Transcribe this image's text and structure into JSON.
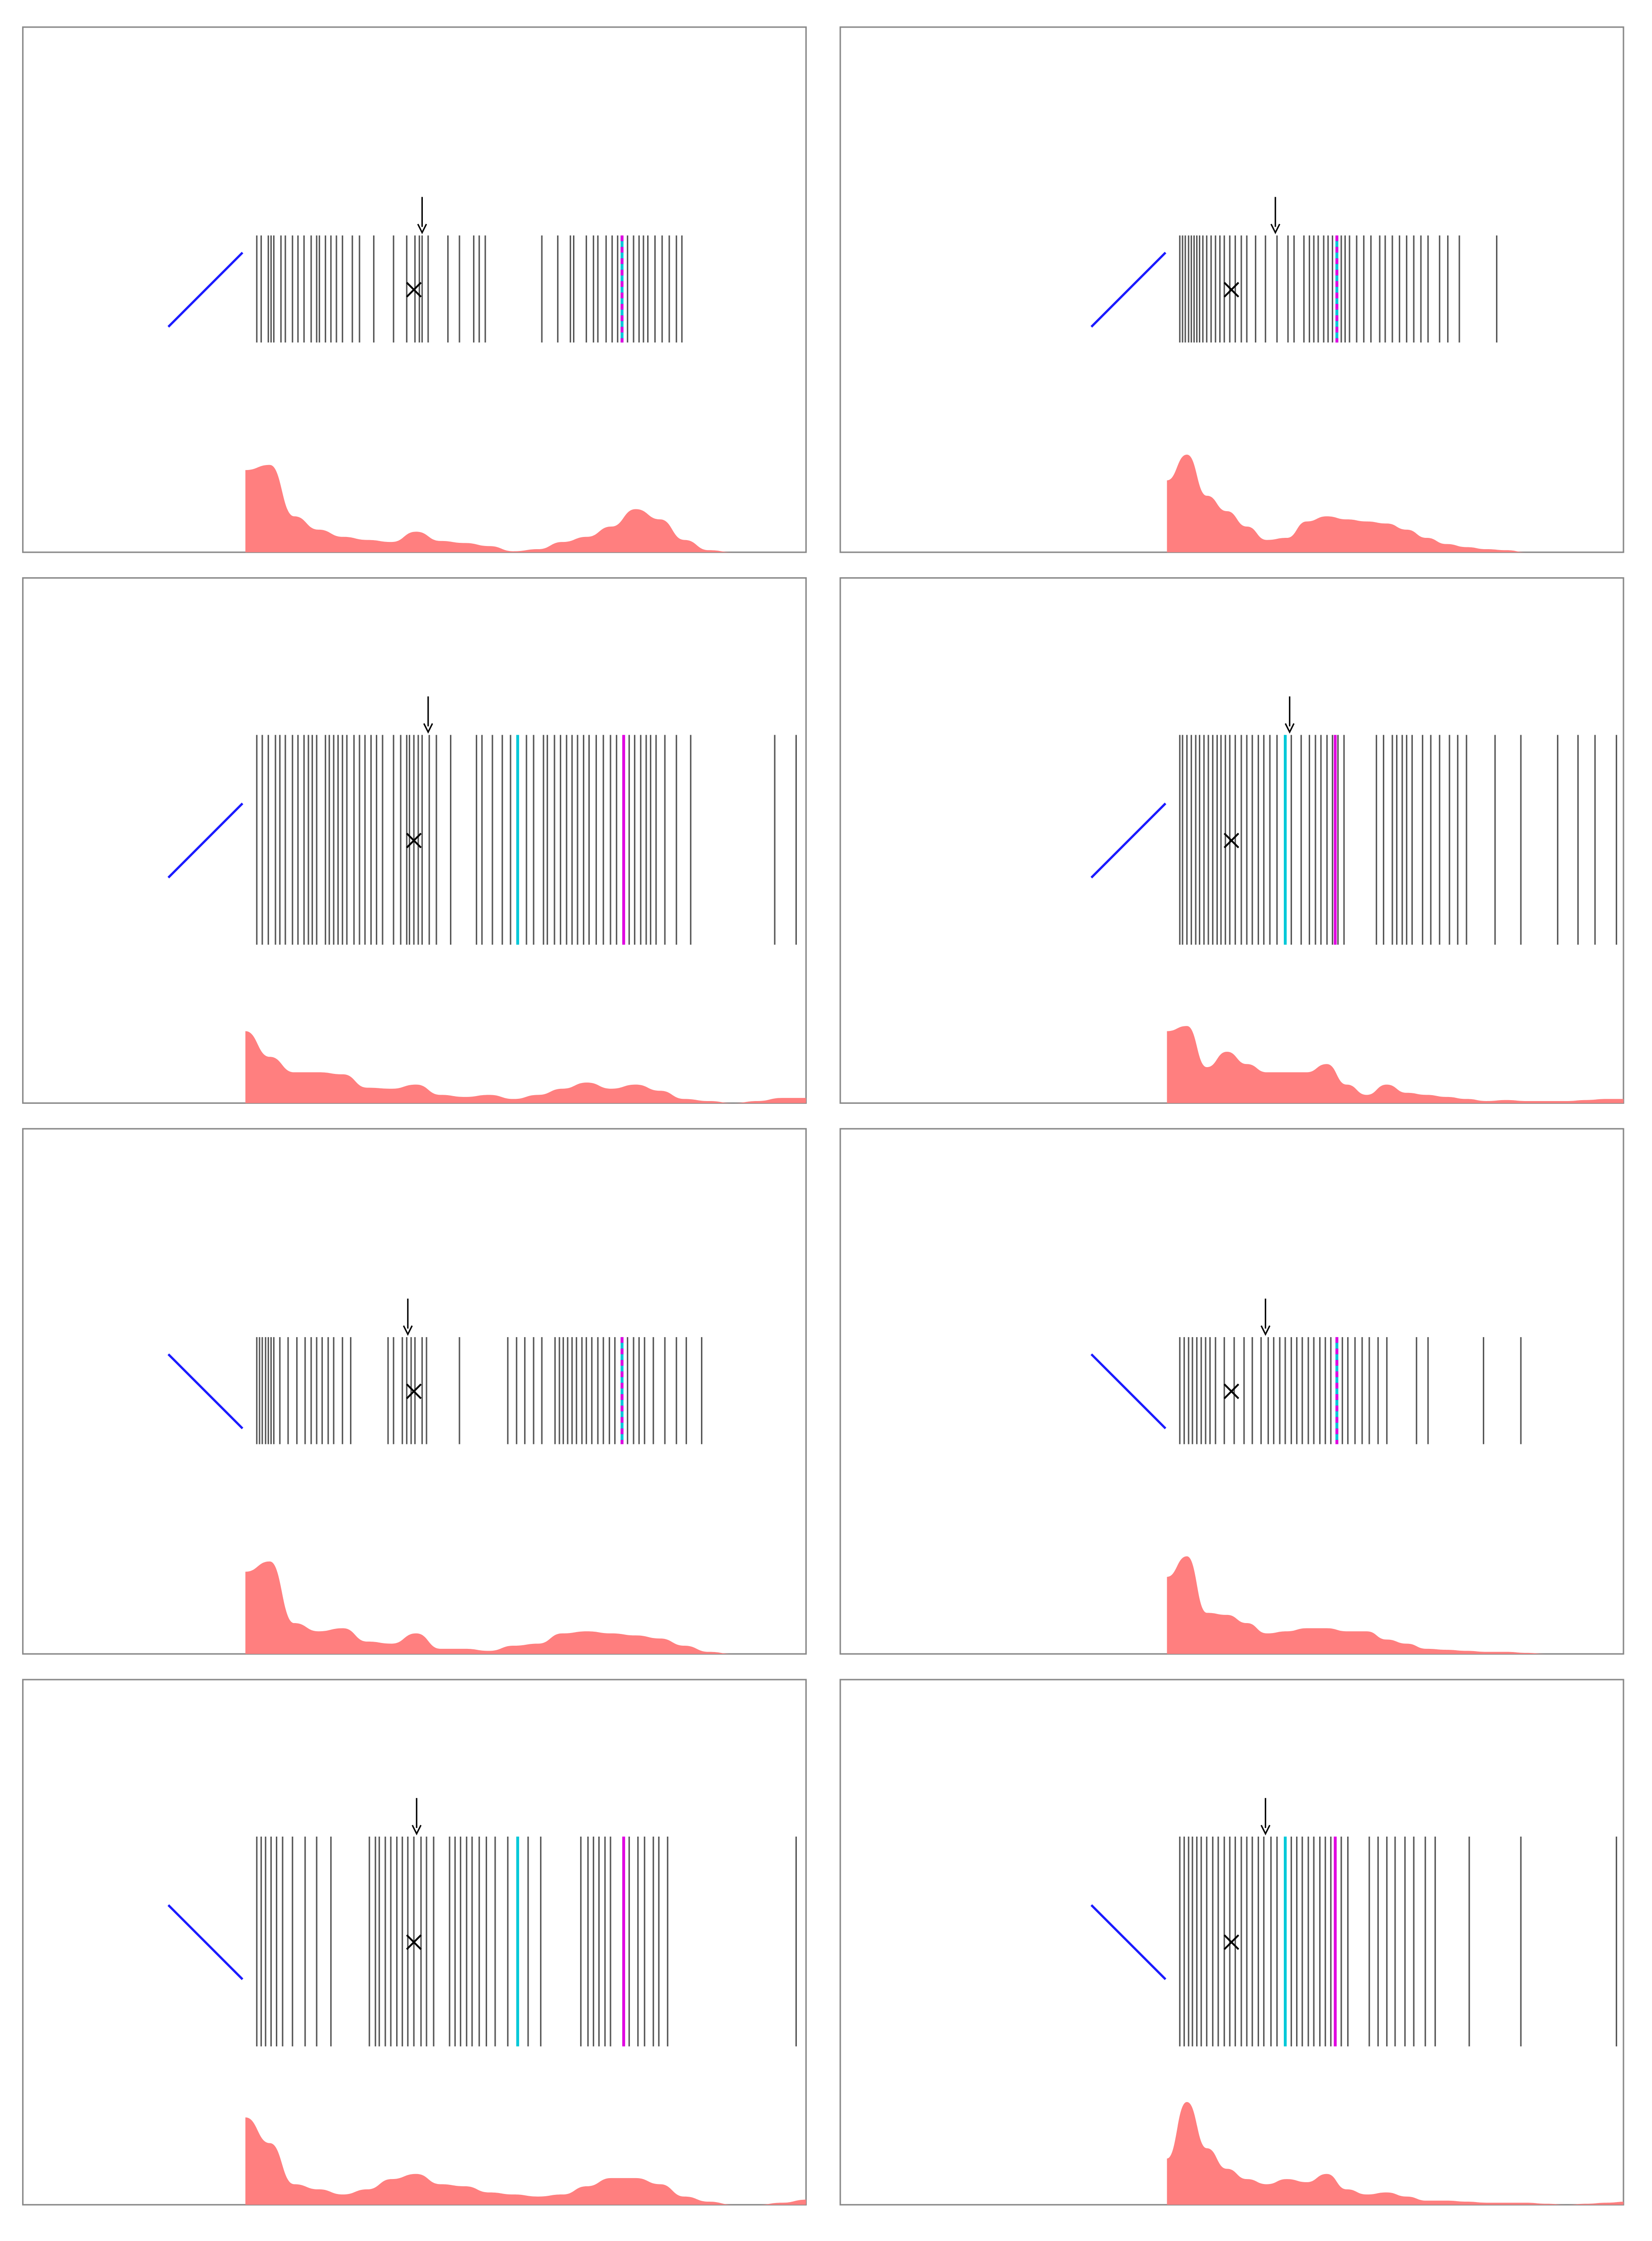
{
  "chart_data": [
    {
      "type": "barcode",
      "color": "#555555",
      "density_color": "#ff7f7f",
      "trend_color": "#1a1aff",
      "xlim": [
        0,
        100
      ],
      "ylim": [
        0,
        100
      ],
      "x": [
        0,
        0.8,
        2.1,
        2.6,
        3.1,
        4.4,
        5.2,
        6.5,
        7.5,
        8.6,
        9.9,
        10.9,
        11.4,
        12.5,
        13.5,
        14.5,
        15.6,
        17.4,
        18.7,
        21.3,
        24.9,
        27.3,
        28.8,
        29.6,
        30.1,
        31.2,
        34.8,
        36.9,
        39.5,
        40.5,
        41.6,
        51.9,
        54.8,
        57.1,
        57.7,
        60,
        61.3,
        62.1,
        63.6,
        64.7,
        65.7,
        67.5,
        68.6,
        69.6,
        70.4,
        71.2,
        72.5,
        73.8,
        75.1,
        76.4,
        77.4
      ],
      "highlights": [
        {
          "color": "#00c8d8",
          "x": 66.5
        },
        {
          "color": "#e000e0",
          "x": 66.5
        }
      ],
      "pointer_x": 30.1,
      "marker_x": 28.6,
      "density": [
        80,
        85,
        35,
        22,
        15,
        12,
        10,
        20,
        11,
        9,
        6,
        1,
        3,
        10,
        15,
        25,
        42,
        32,
        12,
        2,
        0,
        0,
        0,
        0
      ]
    },
    {
      "type": "barcode",
      "color": "#555555",
      "density_color": "#ff7f7f",
      "trend_color": "#1a1aff",
      "xlim": [
        0,
        100
      ],
      "ylim": [
        0,
        100
      ],
      "x": [
        0,
        0.5,
        1,
        1.6,
        2.1,
        2.6,
        3.1,
        3.6,
        4.2,
        4.9,
        5.7,
        6.5,
        7.3,
        8.1,
        9.1,
        10.1,
        11.2,
        12.2,
        13.8,
        15.6,
        17.7,
        19.7,
        20.8,
        22.6,
        23.6,
        24.4,
        25.2,
        26.2,
        27,
        27.8,
        29.4,
        30.1,
        30.9,
        32.2,
        33.5,
        34.8,
        36.4,
        37.4,
        38.7,
        40,
        41.3,
        42.6,
        43.9,
        45.2,
        47.3,
        48.8,
        50.9,
        57.7
      ],
      "highlights": [
        {
          "color": "#00c8d8",
          "x": 28.6
        },
        {
          "color": "#e000e0",
          "x": 28.6
        }
      ],
      "pointer_x": 17.4,
      "marker_x": 9.4,
      "density": [
        70,
        95,
        55,
        40,
        25,
        12,
        14,
        30,
        35,
        32,
        30,
        28,
        22,
        14,
        8,
        5,
        3,
        2,
        0,
        0,
        0,
        0,
        0,
        0
      ]
    },
    {
      "type": "barcode",
      "color": "#555555",
      "density_color": "#ff7f7f",
      "trend_color": "#1a1aff",
      "xlim": [
        0,
        100
      ],
      "ylim": [
        0,
        100
      ],
      "x": [
        0,
        1,
        2.1,
        3.4,
        4.2,
        5.2,
        6.5,
        7.5,
        8.6,
        9.4,
        10.1,
        10.9,
        12.5,
        13.2,
        14,
        14.8,
        15.6,
        16.4,
        17.7,
        18.7,
        19.7,
        20.8,
        21.8,
        22.9,
        24.9,
        26.2,
        27.3,
        27.8,
        28.6,
        29.4,
        30.1,
        31.4,
        32.7,
        35.3,
        40,
        41,
        42.9,
        44.7,
        46.2,
        49.1,
        50.4,
        52.2,
        52.9,
        54.2,
        55.3,
        56.4,
        57.4,
        58.4,
        59.5,
        60.5,
        61.8,
        63.1,
        64.4,
        65.5,
        67.8,
        68.8,
        69.9,
        70.9,
        71.7,
        72.7,
        74.3,
        76.4,
        79,
        94.3,
        98.2
      ],
      "highlights": [
        {
          "color": "#00c8d8",
          "x": 47.5
        },
        {
          "color": "#e000e0",
          "x": 66.8
        }
      ],
      "pointer_x": 31.2,
      "marker_x": 28.6,
      "density": [
        70,
        45,
        30,
        30,
        28,
        15,
        14,
        18,
        8,
        6,
        8,
        4,
        8,
        14,
        20,
        14,
        18,
        12,
        4,
        2,
        0,
        2,
        5,
        5
      ]
    },
    {
      "type": "barcode",
      "color": "#555555",
      "density_color": "#ff7f7f",
      "trend_color": "#1a1aff",
      "xlim": [
        0,
        100
      ],
      "ylim": [
        0,
        100
      ],
      "x": [
        0,
        0.5,
        1.3,
        2.1,
        2.9,
        3.6,
        4.4,
        5.2,
        6,
        6.8,
        7.5,
        8.3,
        9.1,
        10.1,
        11.2,
        12.2,
        13.2,
        14.3,
        15.3,
        16.4,
        17.7,
        20.3,
        22.1,
        23.6,
        24.7,
        25.7,
        26.8,
        27.8,
        28.8,
        29.9,
        35.8,
        37.1,
        38.7,
        39.5,
        40.5,
        41.3,
        42.3,
        44.2,
        45.7,
        47.3,
        49.1,
        50.6,
        52.2,
        57.4,
        62.1,
        68.8,
        72.5,
        75.6,
        79.5
      ],
      "highlights": [
        {
          "color": "#00c8d8",
          "x": 19.2
        },
        {
          "color": "#e000e0",
          "x": 28.3
        }
      ],
      "pointer_x": 20,
      "marker_x": 9.4,
      "density": [
        70,
        75,
        35,
        50,
        38,
        30,
        30,
        30,
        38,
        18,
        8,
        18,
        10,
        8,
        6,
        4,
        2,
        3,
        2,
        2,
        2,
        3,
        4,
        4
      ]
    },
    {
      "type": "barcode",
      "color": "#555555",
      "density_color": "#ff7f7f",
      "trend_color": "#1a1aff",
      "xlim": [
        0,
        100
      ],
      "ylim": [
        0,
        100
      ],
      "x": [
        0,
        0.5,
        1,
        1.6,
        2.1,
        2.6,
        3.1,
        4.2,
        5.7,
        7.3,
        8.8,
        9.9,
        10.9,
        11.9,
        13,
        14,
        15.6,
        17.1,
        23.9,
        24.9,
        26.5,
        27.3,
        28.1,
        28.8,
        30.1,
        30.9,
        36.9,
        45.7,
        47.3,
        48.8,
        50.4,
        51.9,
        54.3,
        55.1,
        55.8,
        56.6,
        57.4,
        58.2,
        59.2,
        60,
        61,
        62.1,
        63.1,
        64.2,
        65.2,
        67.5,
        68.6,
        69.6,
        70.6,
        72.2,
        74.3,
        76.4,
        78.2,
        81
      ],
      "highlights": [
        {
          "color": "#00c8d8",
          "x": 66.5
        },
        {
          "color": "#e000e0",
          "x": 66.5
        }
      ],
      "pointer_x": 27.5,
      "marker_x": 28.6,
      "density": [
        80,
        90,
        30,
        22,
        25,
        12,
        10,
        20,
        5,
        5,
        3,
        8,
        10,
        20,
        22,
        20,
        18,
        15,
        8,
        2,
        0,
        0,
        0,
        0
      ]
    },
    {
      "type": "barcode",
      "color": "#555555",
      "density_color": "#ff7f7f",
      "trend_color": "#1a1aff",
      "xlim": [
        0,
        100
      ],
      "ylim": [
        0,
        100
      ],
      "x": [
        0,
        0.8,
        1.6,
        2.3,
        3.1,
        3.9,
        4.7,
        5.5,
        6.5,
        8.1,
        9.9,
        11.7,
        13.2,
        14.8,
        16.1,
        17.1,
        18.2,
        19.2,
        20.3,
        21.3,
        22.3,
        23.4,
        24.4,
        25.5,
        26.5,
        27.5,
        29.6,
        30.6,
        31.9,
        33.2,
        34.5,
        36.1,
        37.7,
        43.1,
        45.2,
        55.3,
        62.1
      ],
      "highlights": [
        {
          "color": "#00c8d8",
          "x": 28.6
        },
        {
          "color": "#e000e0",
          "x": 28.6
        }
      ],
      "pointer_x": 15.6,
      "marker_x": 9.4,
      "density": [
        75,
        95,
        40,
        38,
        30,
        20,
        22,
        25,
        25,
        22,
        22,
        14,
        10,
        5,
        4,
        3,
        2,
        2,
        1,
        0,
        0,
        0,
        0,
        0
      ]
    },
    {
      "type": "barcode",
      "color": "#555555",
      "density_color": "#ff7f7f",
      "trend_color": "#1a1aff",
      "xlim": [
        0,
        100
      ],
      "ylim": [
        0,
        100
      ],
      "x": [
        0,
        0.8,
        1.6,
        2.6,
        3.6,
        4.7,
        6.5,
        8.8,
        10.9,
        13.5,
        20.5,
        21.6,
        22.3,
        23.4,
        24.4,
        25.5,
        26.5,
        27.5,
        28.6,
        29.9,
        30.9,
        32.2,
        35.1,
        36.1,
        37.1,
        38.2,
        39.2,
        40.5,
        41.8,
        43.4,
        45.7,
        49.4,
        51.7,
        59,
        60.3,
        61.3,
        62.3,
        63.4,
        64.4,
        67.8,
        69.4,
        70.6,
        72.2,
        73.2,
        74.8,
        98.2
      ],
      "highlights": [
        {
          "color": "#00c8d8",
          "x": 47.5
        },
        {
          "color": "#e000e0",
          "x": 66.8
        }
      ],
      "pointer_x": 29.1,
      "marker_x": 28.6,
      "density": [
        85,
        60,
        20,
        15,
        10,
        15,
        25,
        30,
        20,
        18,
        12,
        10,
        8,
        10,
        18,
        26,
        26,
        20,
        8,
        3,
        0,
        0,
        2,
        5
      ]
    },
    {
      "type": "barcode",
      "color": "#555555",
      "density_color": "#ff7f7f",
      "trend_color": "#1a1aff",
      "xlim": [
        0,
        100
      ],
      "ylim": [
        0,
        100
      ],
      "x": [
        0,
        0.8,
        1.6,
        2.3,
        3.1,
        3.9,
        4.9,
        6,
        7,
        8.1,
        9.1,
        10.1,
        11.2,
        12.2,
        13.2,
        14.3,
        15.3,
        16.6,
        17.7,
        20.3,
        21.3,
        22.3,
        23.4,
        24.4,
        25.5,
        26.5,
        27.5,
        29.4,
        30.6,
        34.5,
        36.1,
        37.7,
        39.2,
        41,
        42.6,
        44.7,
        46.5,
        52.7,
        62.1,
        79.5
      ],
      "highlights": [
        {
          "color": "#00c8d8",
          "x": 19.2
        },
        {
          "color": "#e000e0",
          "x": 28.3
        }
      ],
      "pointer_x": 15.6,
      "marker_x": 9.4,
      "density": [
        45,
        100,
        55,
        35,
        25,
        20,
        25,
        22,
        30,
        15,
        10,
        12,
        8,
        4,
        4,
        3,
        2,
        2,
        2,
        1,
        0,
        1,
        2,
        3
      ]
    }
  ]
}
